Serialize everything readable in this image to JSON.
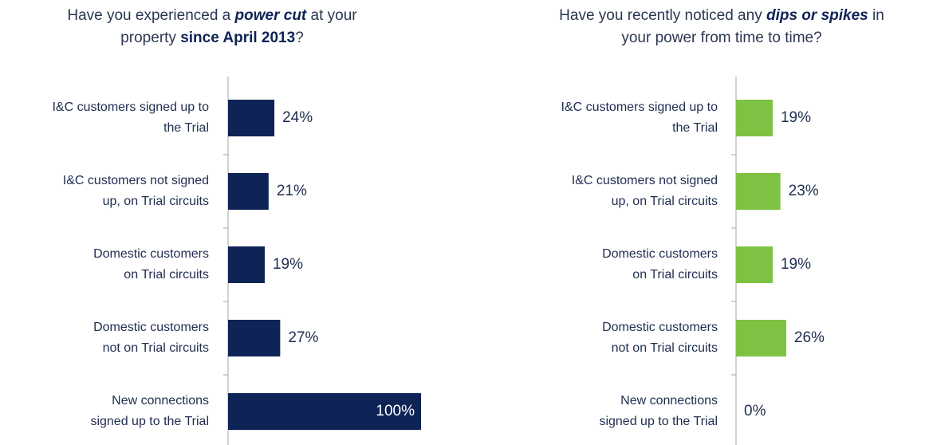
{
  "chart_data": [
    {
      "type": "bar",
      "orientation": "horizontal",
      "title": [
        [
          {
            "text": "Have you experienced a ",
            "bold": false,
            "italic": false
          },
          {
            "text": "power cut",
            "bold": true,
            "italic": true
          },
          {
            "text": " at your",
            "bold": false,
            "italic": false
          }
        ],
        [
          {
            "text": "property ",
            "bold": false,
            "italic": false
          },
          {
            "text": "since April 2013",
            "bold": true,
            "italic": false
          },
          {
            "text": "?",
            "bold": false,
            "italic": false
          }
        ]
      ],
      "categories": [
        [
          "I&C customers signed up to",
          "the Trial"
        ],
        [
          "I&C customers not signed",
          "up, on Trial circuits"
        ],
        [
          "Domestic customers",
          "on Trial circuits"
        ],
        [
          "Domestic customers",
          "not on Trial circuits"
        ],
        [
          "New connections",
          "signed up to the Trial"
        ]
      ],
      "values": [
        24,
        21,
        19,
        27,
        100
      ],
      "value_labels": [
        "24%",
        "21%",
        "19%",
        "27%",
        "100%"
      ],
      "color": "#0e2356",
      "xlim": [
        0,
        100
      ]
    },
    {
      "type": "bar",
      "orientation": "horizontal",
      "title": [
        [
          {
            "text": "Have you recently noticed any ",
            "bold": false,
            "italic": false
          },
          {
            "text": "dips or spikes",
            "bold": true,
            "italic": true
          },
          {
            "text": " in",
            "bold": false,
            "italic": false
          }
        ],
        [
          {
            "text": "your power from time to time?",
            "bold": false,
            "italic": false
          }
        ]
      ],
      "categories": [
        [
          "I&C customers signed up to",
          "the Trial"
        ],
        [
          "I&C customers not signed",
          "up, on Trial circuits"
        ],
        [
          "Domestic customers",
          "on Trial circuits"
        ],
        [
          "Domestic customers",
          "not on Trial circuits"
        ],
        [
          "New connections",
          "signed up to the Trial"
        ]
      ],
      "values": [
        19,
        23,
        19,
        26,
        0
      ],
      "value_labels": [
        "19%",
        "23%",
        "19%",
        "26%",
        "0%"
      ],
      "color": "#7dc242",
      "xlim": [
        0,
        100
      ]
    }
  ]
}
